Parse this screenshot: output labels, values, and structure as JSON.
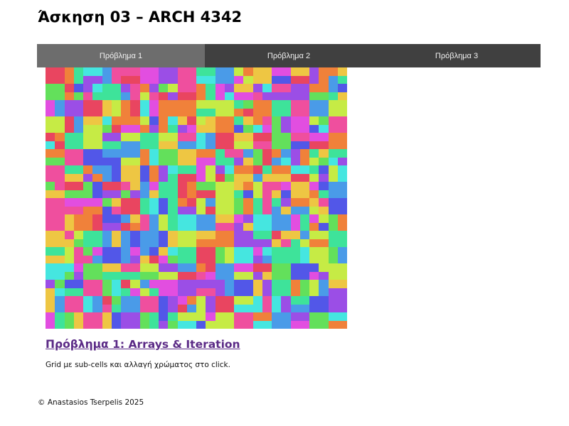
{
  "page": {
    "title": "Άσκηση 03 – ARCH 4342"
  },
  "nav": {
    "tabs": [
      {
        "label": "Πρόβλημα 1",
        "active": true
      },
      {
        "label": "Πρόβλημα 2",
        "active": false
      },
      {
        "label": "Πρόβλημα 3",
        "active": false
      }
    ]
  },
  "grid": {
    "columns": 16,
    "rows": 16,
    "palette": [
      "#e94560",
      "#f0813a",
      "#eec643",
      "#c6eb45",
      "#63e05b",
      "#3ee39a",
      "#45e6e0",
      "#4a9be8",
      "#5257e8",
      "#9b4ee6",
      "#e24ee0",
      "#ef4f9e"
    ]
  },
  "section": {
    "heading": "Πρόβλημα 1: Arrays & Iteration",
    "description": "Grid με sub-cells και αλλαγή χρώματος στο click."
  },
  "footer": {
    "text": "© Anastasios Tserpelis 2025"
  }
}
